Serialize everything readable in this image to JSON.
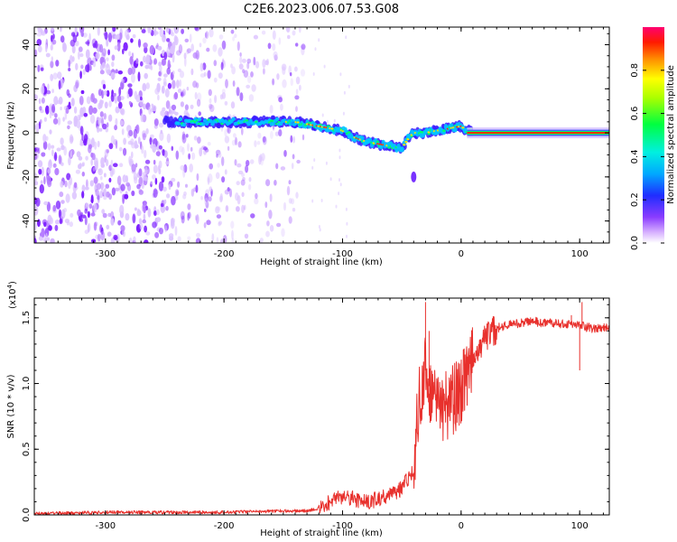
{
  "title": "C2E6.2023.006.07.53.G08",
  "chart_data": [
    {
      "type": "heatmap",
      "xlabel": "Height of straight line (km)",
      "ylabel": "Frequency (Hz)",
      "xlim": [
        -360,
        125
      ],
      "ylim": [
        -50,
        48
      ],
      "xticks": [
        -300,
        -200,
        -100,
        0,
        100
      ],
      "yticks": [
        -40,
        -20,
        0,
        20,
        40
      ],
      "ridge": {
        "x": [
          -360,
          -300,
          -250,
          -200,
          -150,
          -140,
          -120,
          -100,
          -90,
          -80,
          -70,
          -60,
          -50,
          -45,
          -40,
          -30,
          -20,
          -10,
          0,
          5,
          125
        ],
        "y": [
          5,
          5,
          5,
          5,
          5,
          5,
          3,
          1,
          -2,
          -4,
          -5,
          -6,
          -7,
          -3,
          0,
          0,
          1,
          2,
          3,
          1,
          0
        ]
      },
      "isolated_blob": {
        "x": -40,
        "y": -20
      },
      "colorbar": {
        "label": "Normalized spectral amplitude",
        "range": [
          0,
          1
        ],
        "ticks": [
          0.0,
          0.2,
          0.4,
          0.6,
          0.8
        ],
        "tick_labels": [
          "0.0",
          "0.2",
          "0.4",
          "0.6",
          "0.8"
        ]
      }
    },
    {
      "type": "line",
      "xlabel": "Height of straight line (km)",
      "ylabel": "SNR (10 * v/v)",
      "multiplier": "(x10",
      "multiplier_exp": "4",
      "multiplier_close": ")",
      "xlim": [
        -360,
        125
      ],
      "ylim": [
        0,
        1.65
      ],
      "xticks": [
        -300,
        -200,
        -100,
        0,
        100
      ],
      "yticks": [
        0.0,
        0.5,
        1.0,
        1.5
      ],
      "ytick_labels": [
        "0.0",
        "0.5",
        "1.0",
        "1.5"
      ],
      "color": "#e8302c",
      "trend": {
        "x": [
          -360,
          -300,
          -250,
          -200,
          -150,
          -130,
          -120,
          -110,
          -100,
          -90,
          -80,
          -70,
          -60,
          -50,
          -40,
          -35,
          -30,
          -25,
          -20,
          -15,
          -10,
          -5,
          0,
          5,
          10,
          20,
          30,
          40,
          60,
          80,
          100,
          110,
          125
        ],
        "y": [
          0.01,
          0.02,
          0.02,
          0.02,
          0.03,
          0.03,
          0.05,
          0.1,
          0.14,
          0.12,
          0.1,
          0.12,
          0.15,
          0.2,
          0.35,
          0.9,
          1.1,
          0.9,
          0.85,
          0.8,
          0.85,
          0.9,
          0.95,
          1.05,
          1.2,
          1.35,
          1.42,
          1.45,
          1.47,
          1.46,
          1.44,
          1.42,
          1.42
        ]
      },
      "spikes": [
        {
          "x": -30,
          "y": 1.62
        },
        {
          "x": -27,
          "y": 1.4
        },
        {
          "x": 102,
          "y": 1.62
        },
        {
          "x": 100,
          "y": 1.1
        },
        {
          "x": 93,
          "y": 1.52
        }
      ]
    }
  ]
}
